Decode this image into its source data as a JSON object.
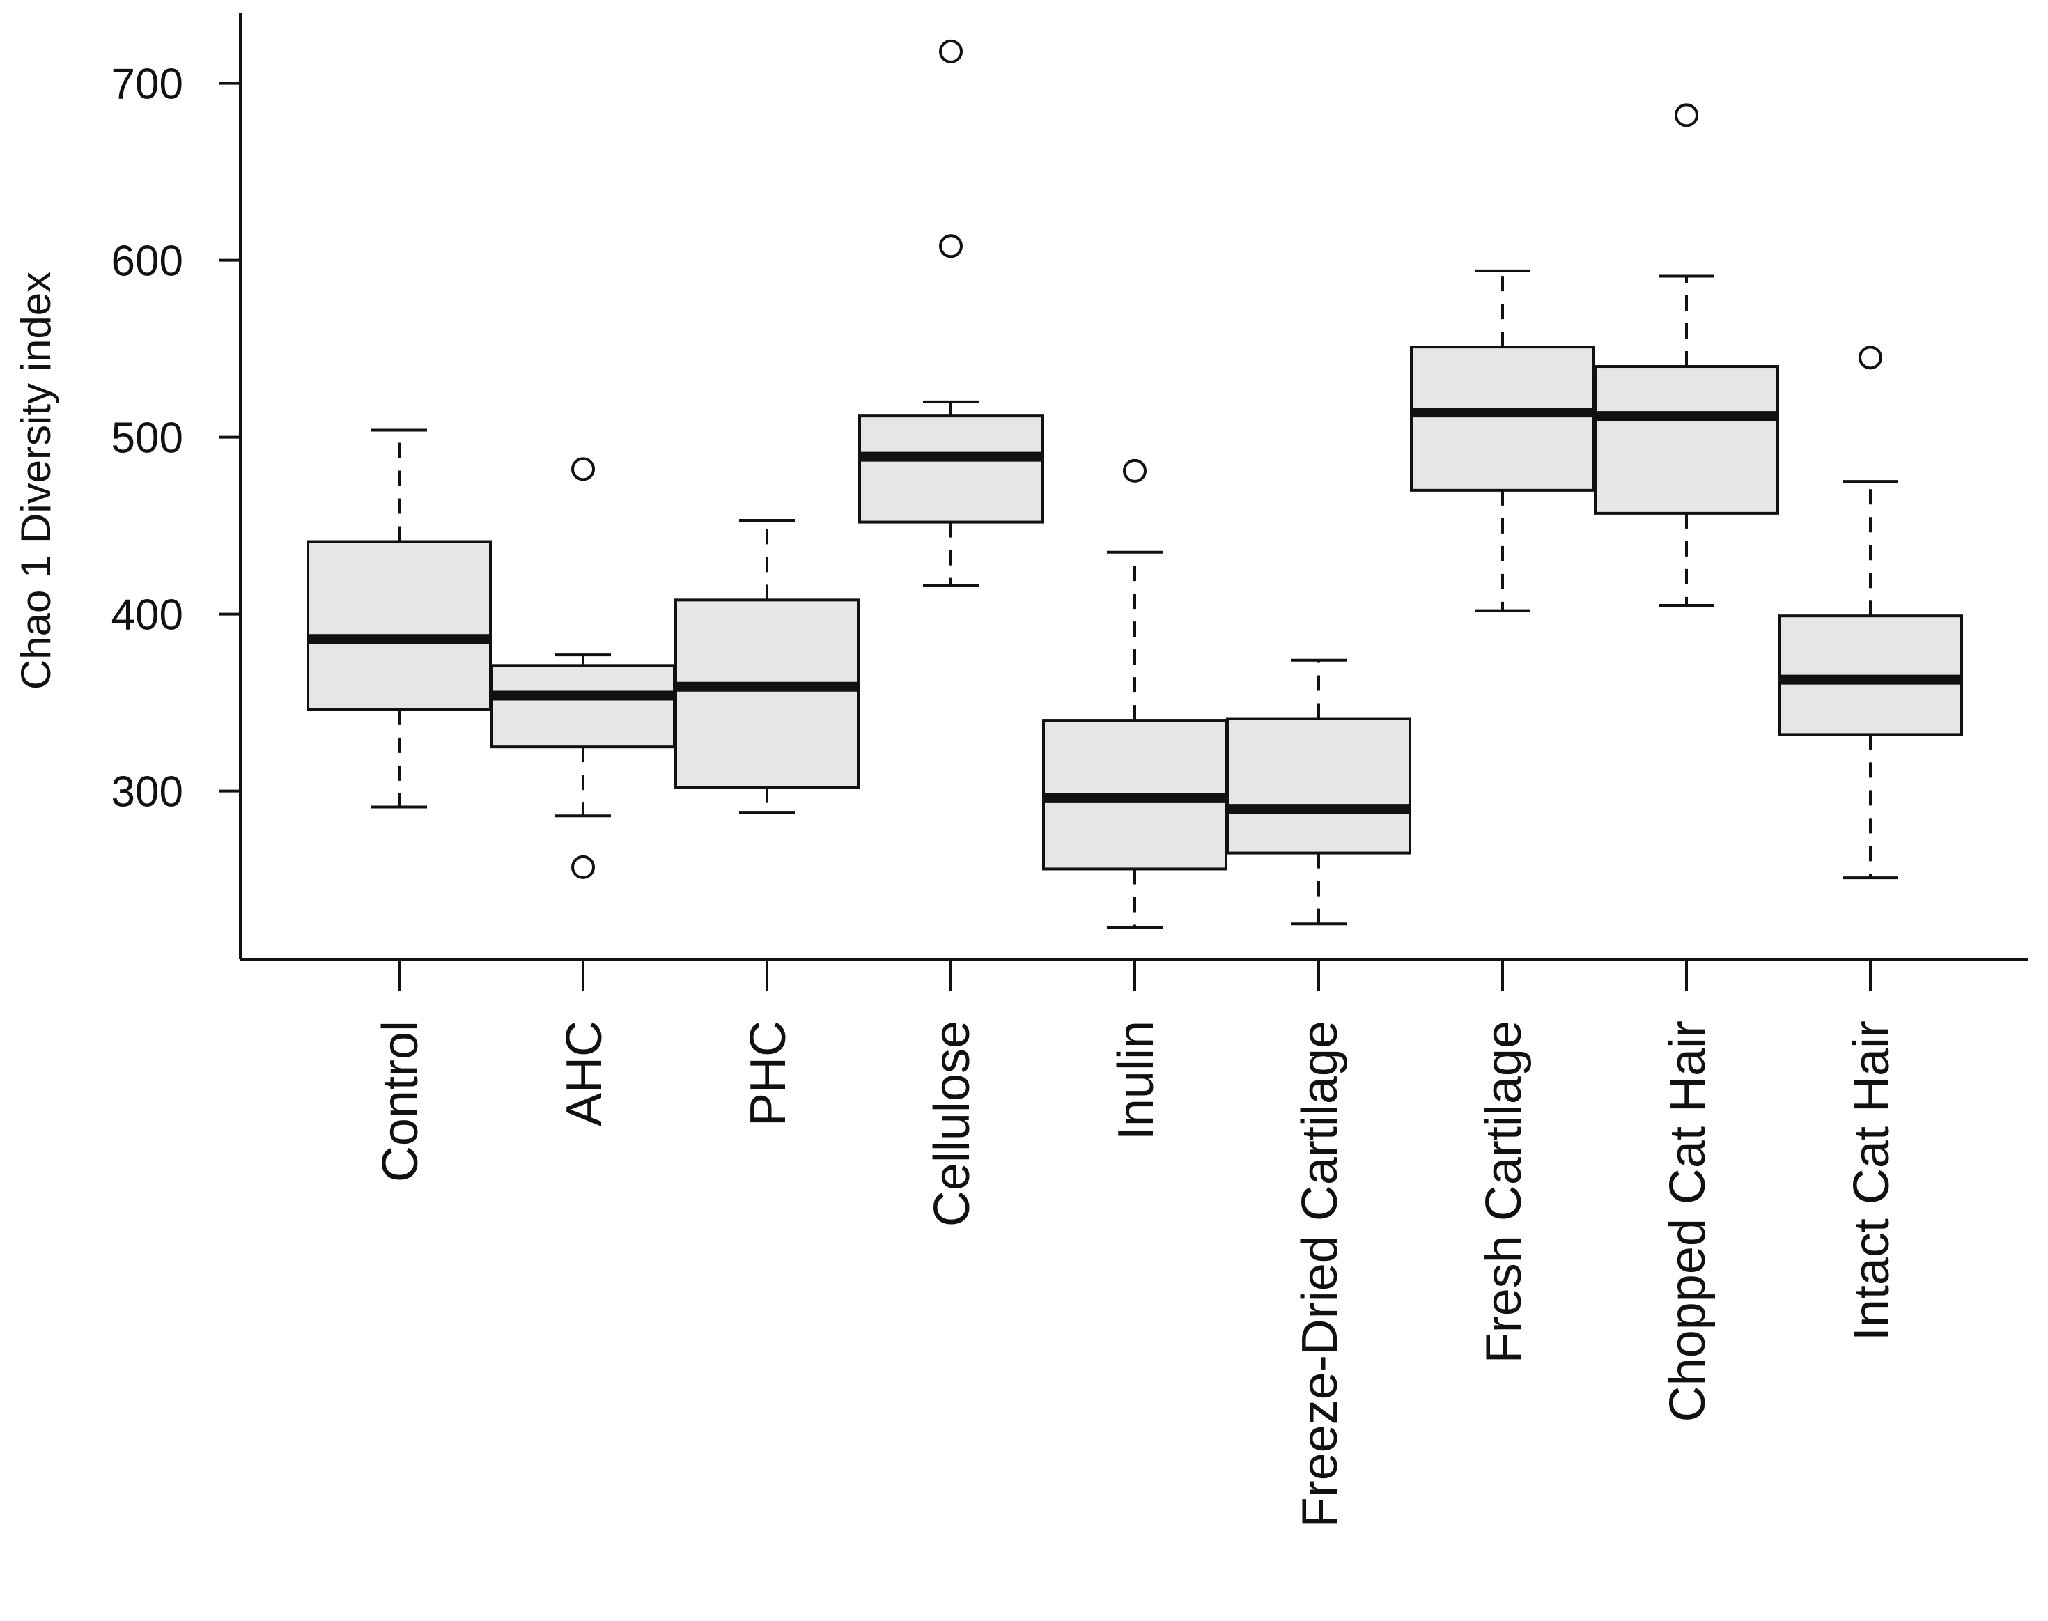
{
  "chart_data": {
    "type": "boxplot",
    "title": "",
    "xlabel": "",
    "ylabel": "Chao 1 Diversity index",
    "ylim": [
      205,
      740
    ],
    "yticks": [
      300,
      400,
      500,
      600,
      700
    ],
    "grid": false,
    "box_fill": "#e6e6e6",
    "stroke_color": "#111111",
    "categories": [
      "Control",
      "AHC",
      "PHC",
      "Cellulose",
      "Inulin",
      "Freeze-Dried Cartilage",
      "Fresh Cartilage",
      "Chopped Cat Hair",
      "Intact Cat Hair"
    ],
    "boxes": [
      {
        "name": "Control",
        "whisker_low": 291,
        "q1": 346,
        "median": 386,
        "q3": 441,
        "whisker_high": 504,
        "outliers": []
      },
      {
        "name": "AHC",
        "whisker_low": 286,
        "q1": 325,
        "median": 354,
        "q3": 371,
        "whisker_high": 377,
        "outliers": [
          482,
          257
        ]
      },
      {
        "name": "PHC",
        "whisker_low": 288,
        "q1": 302,
        "median": 359,
        "q3": 408,
        "whisker_high": 453,
        "outliers": []
      },
      {
        "name": "Cellulose",
        "whisker_low": 416,
        "q1": 452,
        "median": 489,
        "q3": 512,
        "whisker_high": 520,
        "outliers": [
          718,
          608
        ]
      },
      {
        "name": "Inulin",
        "whisker_low": 223,
        "q1": 256,
        "median": 296,
        "q3": 340,
        "whisker_high": 435,
        "outliers": [
          481
        ]
      },
      {
        "name": "Freeze-Dried Cartilage",
        "whisker_low": 225,
        "q1": 265,
        "median": 290,
        "q3": 341,
        "whisker_high": 374,
        "outliers": []
      },
      {
        "name": "Fresh Cartilage",
        "whisker_low": 402,
        "q1": 470,
        "median": 514,
        "q3": 551,
        "whisker_high": 594,
        "outliers": []
      },
      {
        "name": "Chopped Cat Hair",
        "whisker_low": 405,
        "q1": 457,
        "median": 512,
        "q3": 540,
        "whisker_high": 591,
        "outliers": [
          682
        ]
      },
      {
        "name": "Intact Cat Hair",
        "whisker_low": 251,
        "q1": 332,
        "median": 363,
        "q3": 399,
        "whisker_high": 475,
        "outliers": [
          545
        ]
      }
    ]
  }
}
